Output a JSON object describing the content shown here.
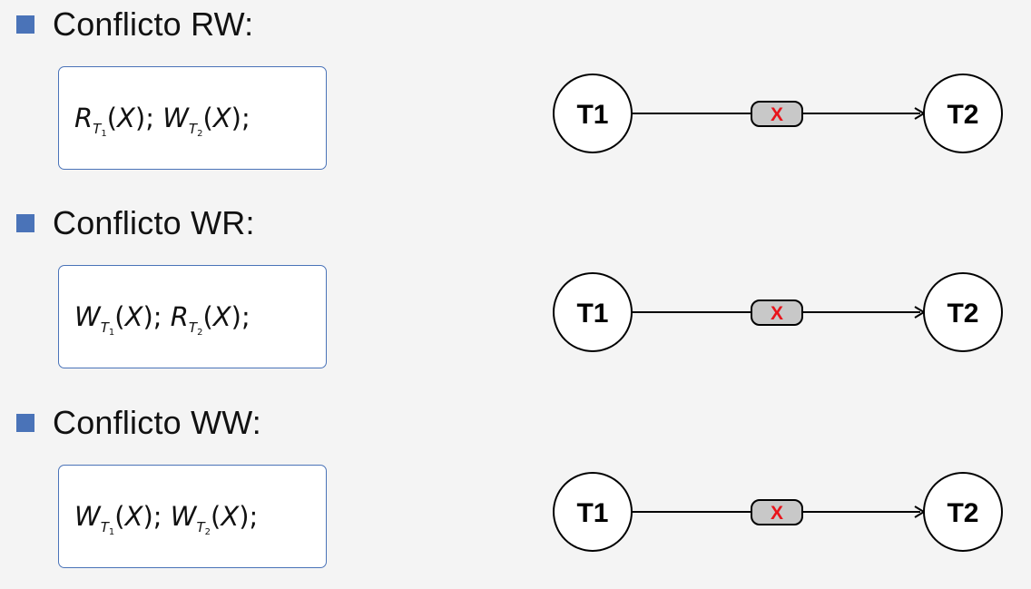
{
  "sections": [
    {
      "heading": "Conflicto RW:",
      "formula": [
        {
          "op": "R",
          "tsub": "1"
        },
        {
          "op": "W",
          "tsub": "2"
        }
      ],
      "graph": {
        "from": "T1",
        "to": "T2",
        "edge_label": "X"
      }
    },
    {
      "heading": "Conflicto WR:",
      "formula": [
        {
          "op": "W",
          "tsub": "1"
        },
        {
          "op": "R",
          "tsub": "2"
        }
      ],
      "graph": {
        "from": "T1",
        "to": "T2",
        "edge_label": "X"
      }
    },
    {
      "heading": "Conflicto WW:",
      "formula": [
        {
          "op": "W",
          "tsub": "1"
        },
        {
          "op": "W",
          "tsub": "2"
        }
      ],
      "graph": {
        "from": "T1",
        "to": "T2",
        "edge_label": "X"
      }
    }
  ],
  "formula_text": {
    "sub_letter": "T",
    "arg": "X",
    "sep": ";"
  },
  "colors": {
    "bullet": "#4a73b8",
    "box_border": "#4a73b8",
    "edge_label_text": "#e8141b",
    "edge_label_bg": "#c8c8c8",
    "node_fill": "#ffffff",
    "stroke": "#000000"
  }
}
